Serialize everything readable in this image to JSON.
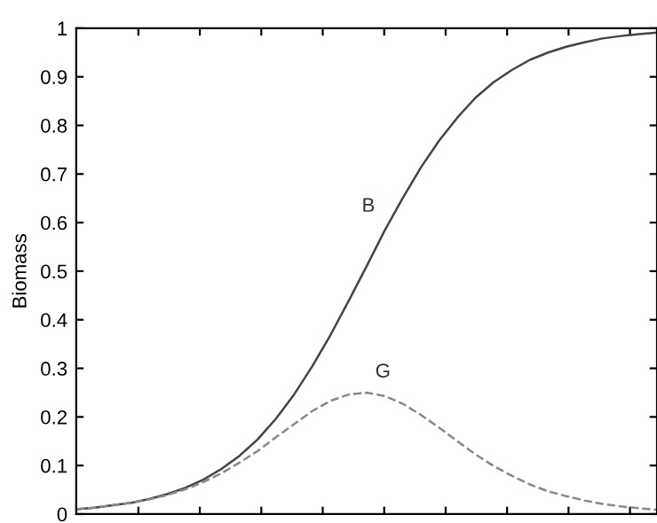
{
  "chart_data": {
    "type": "line",
    "ylabel": "Biomass",
    "categories": [
      null,
      null,
      null,
      null,
      null,
      null,
      null,
      null,
      null,
      null,
      null,
      null,
      null,
      null,
      null,
      null,
      null,
      null,
      null,
      null,
      null,
      null,
      null,
      null,
      null,
      null,
      null,
      null,
      null,
      null,
      null,
      null,
      null
    ],
    "series": [
      {
        "name": "B",
        "color": "#444444",
        "line_style": "solid",
        "values": [
          0.01,
          0.013,
          0.018,
          0.023,
          0.031,
          0.041,
          0.054,
          0.071,
          0.093,
          0.12,
          0.154,
          0.196,
          0.246,
          0.304,
          0.368,
          0.438,
          0.51,
          0.584,
          0.651,
          0.714,
          0.769,
          0.816,
          0.857,
          0.889,
          0.914,
          0.935,
          0.95,
          0.962,
          0.971,
          0.979,
          0.984,
          0.988,
          0.991
        ]
      },
      {
        "name": "G",
        "color": "#888888",
        "line_style": "dashed",
        "values": [
          0.01,
          0.013,
          0.018,
          0.023,
          0.03,
          0.039,
          0.051,
          0.066,
          0.084,
          0.106,
          0.13,
          0.158,
          0.185,
          0.212,
          0.233,
          0.246,
          0.25,
          0.243,
          0.227,
          0.204,
          0.178,
          0.15,
          0.123,
          0.099,
          0.079,
          0.061,
          0.047,
          0.037,
          0.028,
          0.021,
          0.016,
          0.012,
          0.009
        ]
      }
    ],
    "ylim": [
      0,
      1
    ],
    "yticks": [
      0,
      0.1,
      0.2,
      0.3,
      0.4,
      0.5,
      0.6,
      0.7,
      0.8,
      0.9,
      1
    ],
    "grid": false,
    "legend": false,
    "marker": "none",
    "tick_labels": "y"
  }
}
